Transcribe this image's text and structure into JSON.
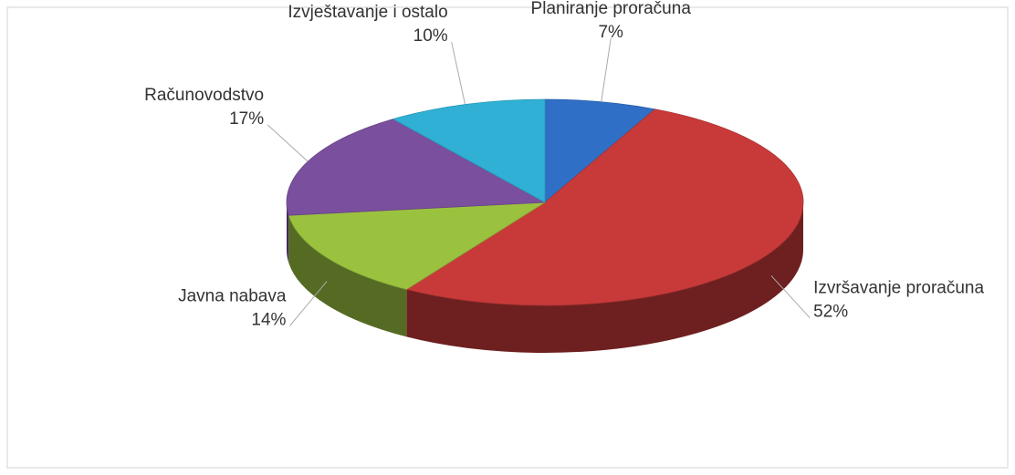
{
  "chart_data": {
    "type": "pie3d",
    "categories": [
      "Planiranje proračuna",
      "Izvršavanje proračuna",
      "Javna nabava",
      "Računovodstvo",
      "Izvještavanje i ostalo"
    ],
    "values": [
      7,
      52,
      14,
      17,
      10
    ],
    "value_labels": [
      "7%",
      "52%",
      "14%",
      "17%",
      "10%"
    ],
    "colors": [
      "#2f6fc6",
      "#c83a3a",
      "#9bc23f",
      "#7a4f9e",
      "#2fb0d4"
    ]
  }
}
